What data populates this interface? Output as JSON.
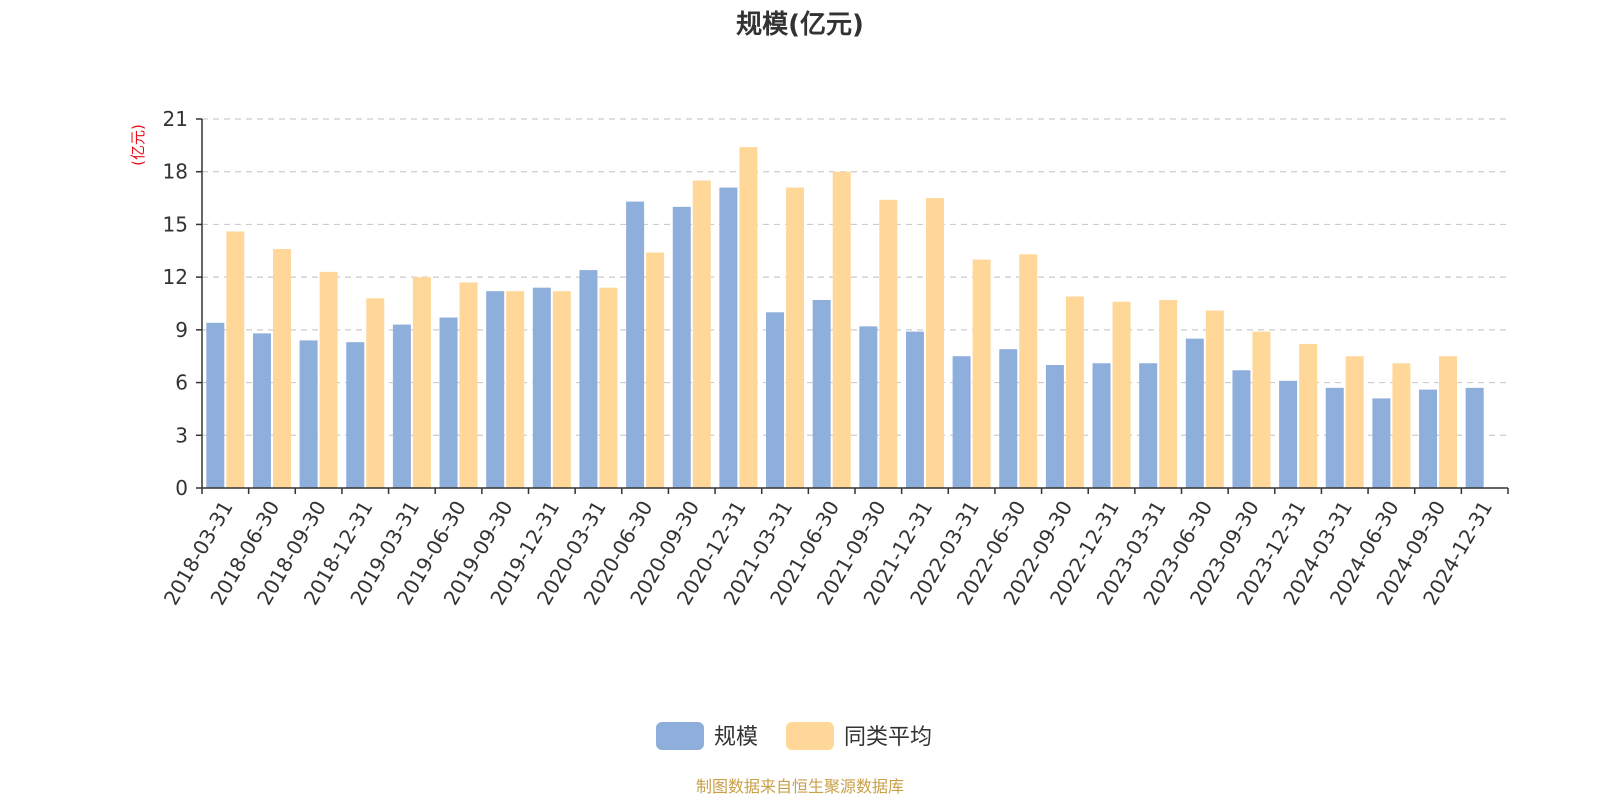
{
  "chart_data": {
    "type": "bar",
    "title": "规模(亿元)",
    "ylabel": "(亿元)",
    "ylim": [
      0,
      21
    ],
    "yticks": [
      0,
      3,
      6,
      9,
      12,
      15,
      18,
      21
    ],
    "grid": true,
    "legend_position": "bottom",
    "categories": [
      "2018-03-31",
      "2018-06-30",
      "2018-09-30",
      "2018-12-31",
      "2019-03-31",
      "2019-06-30",
      "2019-09-30",
      "2019-12-31",
      "2020-03-31",
      "2020-06-30",
      "2020-09-30",
      "2020-12-31",
      "2021-03-31",
      "2021-06-30",
      "2021-09-30",
      "2021-12-31",
      "2022-03-31",
      "2022-06-30",
      "2022-09-30",
      "2022-12-31",
      "2023-03-31",
      "2023-06-30",
      "2023-09-30",
      "2023-12-31",
      "2024-03-31",
      "2024-06-30",
      "2024-09-30",
      "2024-12-31"
    ],
    "series": [
      {
        "name": "规模",
        "color": "#8eaedb",
        "values": [
          9.4,
          8.8,
          8.4,
          8.3,
          9.3,
          9.7,
          11.2,
          11.4,
          12.4,
          16.3,
          16.0,
          17.1,
          10.0,
          10.7,
          9.2,
          8.9,
          7.5,
          7.9,
          7.0,
          7.1,
          7.1,
          8.5,
          6.7,
          6.1,
          5.7,
          5.1,
          5.6,
          5.7
        ]
      },
      {
        "name": "同类平均",
        "color": "#ffd899",
        "values": [
          14.6,
          13.6,
          12.3,
          10.8,
          12.0,
          11.7,
          11.2,
          11.2,
          11.4,
          13.4,
          17.5,
          19.4,
          17.1,
          18.0,
          16.4,
          16.5,
          13.0,
          13.3,
          10.9,
          10.6,
          10.7,
          10.1,
          8.9,
          8.2,
          7.5,
          7.1,
          7.5,
          null
        ]
      }
    ]
  },
  "source_text": "制图数据来自恒生聚源数据库",
  "colors": {
    "axis": "#333333",
    "grid": "#cccccc",
    "unit_label": "#e8101a",
    "source_text": "#c8a048"
  }
}
